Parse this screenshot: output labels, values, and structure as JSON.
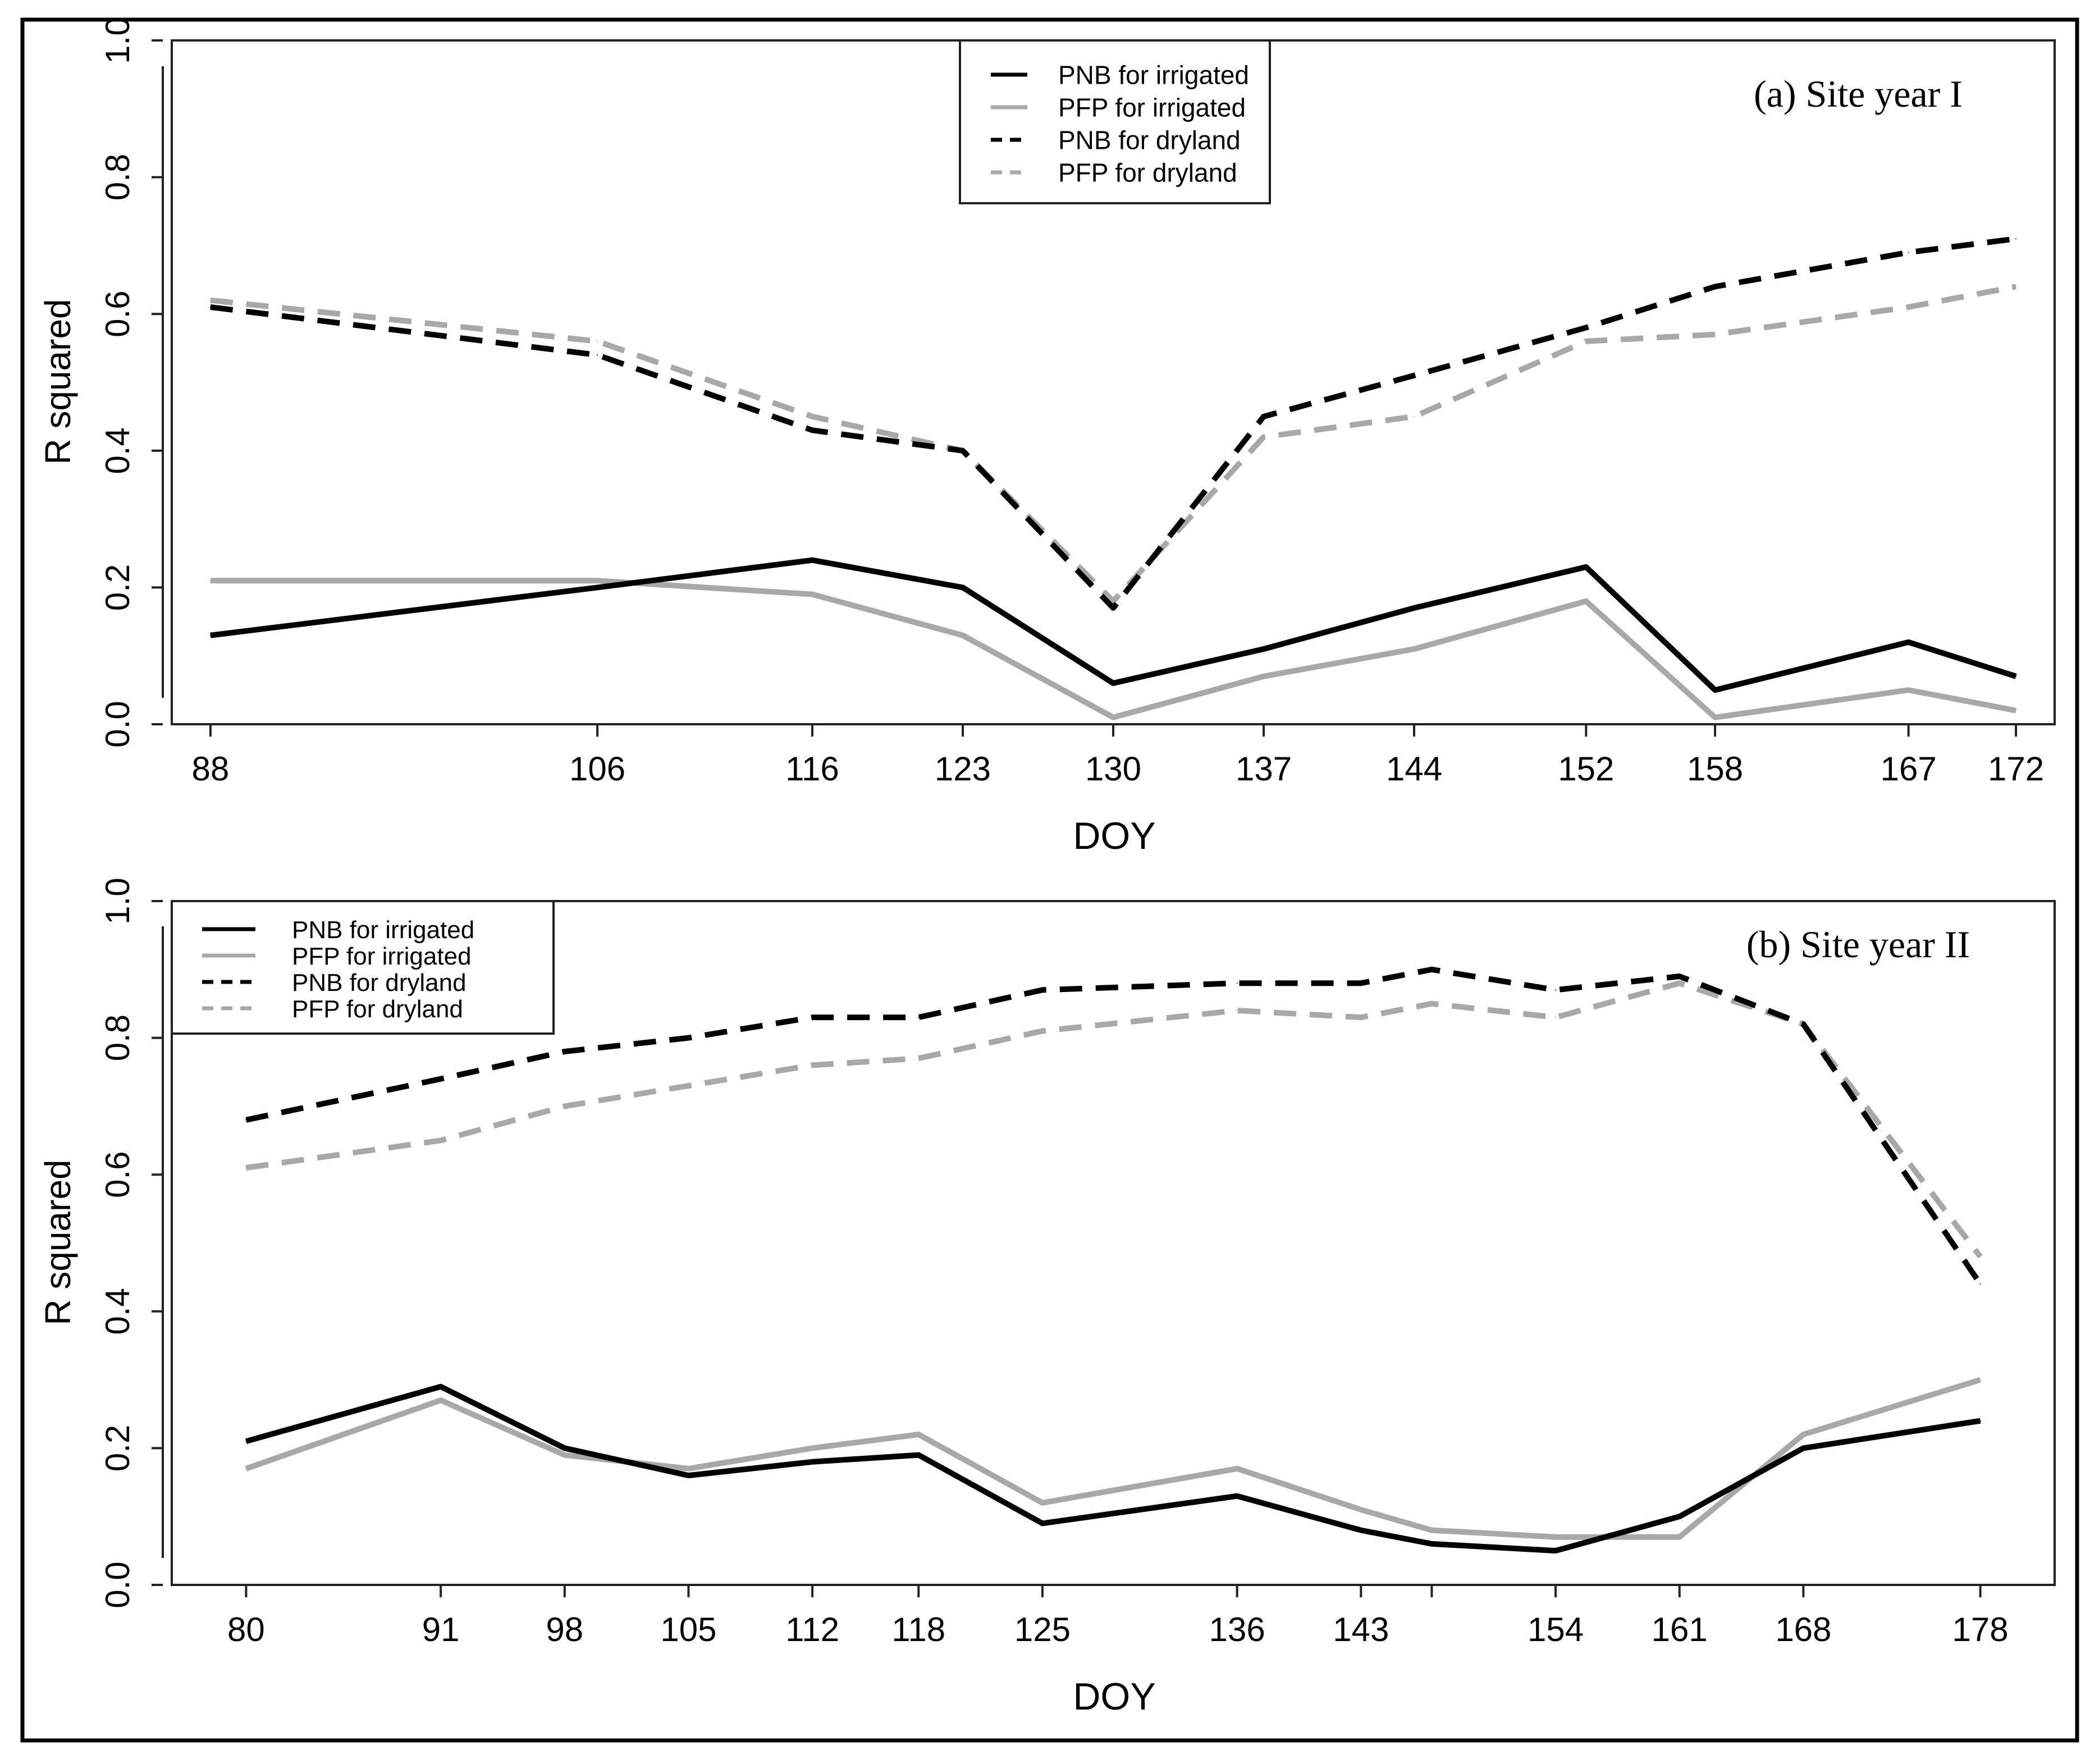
{
  "chart_data": [
    {
      "type": "line",
      "title": "(a) Site year I",
      "xlabel": "DOY",
      "ylabel": "R squared",
      "ylim": [
        0.0,
        1.0
      ],
      "xlim": [
        86.2,
        173.8
      ],
      "yticks": [
        "0.0",
        "0.2",
        "0.4",
        "0.6",
        "0.8",
        "1.0"
      ],
      "ytick_values": [
        0.0,
        0.2,
        0.4,
        0.6,
        0.8,
        1.0
      ],
      "x": [
        88,
        106,
        116,
        123,
        130,
        137,
        144,
        152,
        158,
        167,
        172
      ],
      "xtick_labels": [
        "88",
        "106",
        "116",
        "123",
        "130",
        "137",
        "144",
        "152",
        "158",
        "167",
        "172"
      ],
      "legend_position": "top-center",
      "series": [
        {
          "name": "PNB for irrigated",
          "color": "#000000",
          "dashed": false,
          "values": [
            0.13,
            0.2,
            0.24,
            0.2,
            0.06,
            0.11,
            0.17,
            0.23,
            0.05,
            0.12,
            0.07
          ]
        },
        {
          "name": "PFP for irrigated",
          "color": "#a8a8a8",
          "dashed": false,
          "values": [
            0.21,
            0.21,
            0.19,
            0.13,
            0.01,
            0.07,
            0.11,
            0.18,
            0.01,
            0.05,
            0.02
          ]
        },
        {
          "name": "PNB for dryland",
          "color": "#000000",
          "dashed": true,
          "values": [
            0.61,
            0.54,
            0.43,
            0.4,
            0.17,
            0.45,
            0.51,
            0.58,
            0.64,
            0.69,
            0.71
          ]
        },
        {
          "name": "PFP for dryland",
          "color": "#a8a8a8",
          "dashed": true,
          "values": [
            0.62,
            0.56,
            0.45,
            0.4,
            0.18,
            0.42,
            0.45,
            0.56,
            0.57,
            0.61,
            0.64
          ]
        }
      ]
    },
    {
      "type": "line",
      "title": "(b) Site year II",
      "xlabel": "DOY",
      "ylabel": "R squared",
      "ylim": [
        0.0,
        1.0
      ],
      "xlim": [
        75.8,
        182.2
      ],
      "yticks": [
        "0.0",
        "0.2",
        "0.4",
        "0.6",
        "0.8",
        "1.0"
      ],
      "ytick_values": [
        0.0,
        0.2,
        0.4,
        0.6,
        0.8,
        1.0
      ],
      "x": [
        80,
        91,
        98,
        105,
        112,
        118,
        125,
        136,
        143,
        147,
        154,
        161,
        168,
        178
      ],
      "xtick_labels": [
        "80",
        "91",
        "98",
        "105",
        "112",
        "118",
        "125",
        "136",
        "143",
        "",
        "154",
        "161",
        "168",
        "178"
      ],
      "legend_position": "top-left",
      "series": [
        {
          "name": "PNB for irrigated",
          "color": "#000000",
          "dashed": false,
          "values": [
            0.21,
            0.29,
            0.2,
            0.16,
            0.18,
            0.19,
            0.09,
            0.13,
            0.08,
            0.06,
            0.05,
            0.1,
            0.2,
            0.24
          ]
        },
        {
          "name": "PFP for irrigated",
          "color": "#a8a8a8",
          "dashed": false,
          "values": [
            0.17,
            0.27,
            0.19,
            0.17,
            0.2,
            0.22,
            0.12,
            0.17,
            0.11,
            0.08,
            0.07,
            0.07,
            0.22,
            0.3
          ]
        },
        {
          "name": "PNB for dryland",
          "color": "#000000",
          "dashed": true,
          "values": [
            0.68,
            0.74,
            0.78,
            0.8,
            0.83,
            0.83,
            0.87,
            0.88,
            0.88,
            0.9,
            0.87,
            0.89,
            0.82,
            0.44
          ]
        },
        {
          "name": "PFP for dryland",
          "color": "#a8a8a8",
          "dashed": true,
          "values": [
            0.61,
            0.65,
            0.7,
            0.73,
            0.76,
            0.77,
            0.81,
            0.84,
            0.83,
            0.85,
            0.83,
            0.88,
            0.82,
            0.48
          ]
        }
      ]
    }
  ]
}
